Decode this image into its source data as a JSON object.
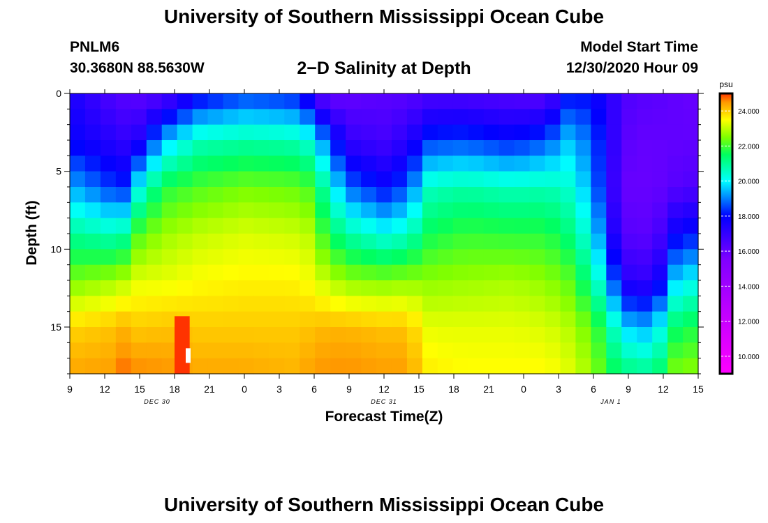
{
  "page": {
    "title_top": "University of Southern Mississippi Ocean Cube",
    "title_bottom": "University of Southern Mississippi Ocean Cube",
    "station": "PNLM6",
    "coords": "30.3680N 88.5630W",
    "subtitle": "2−D Salinity at Depth",
    "model_start_label": "Model Start Time",
    "model_start_value": "12/30/2020 Hour 09"
  },
  "chart_data": {
    "type": "heatmap",
    "title": "2-D Salinity at Depth",
    "xlabel": "Forecast Time(Z)",
    "ylabel": "Depth (ft)",
    "x_range": [
      0,
      54
    ],
    "y_range": [
      0,
      18
    ],
    "x_ticks": [
      {
        "h": 0,
        "label": "9"
      },
      {
        "h": 3,
        "label": "12"
      },
      {
        "h": 6,
        "label": "15"
      },
      {
        "h": 9,
        "label": "18"
      },
      {
        "h": 12,
        "label": "21"
      },
      {
        "h": 15,
        "label": "0"
      },
      {
        "h": 18,
        "label": "3"
      },
      {
        "h": 21,
        "label": "6"
      },
      {
        "h": 24,
        "label": "9"
      },
      {
        "h": 27,
        "label": "12"
      },
      {
        "h": 30,
        "label": "15"
      },
      {
        "h": 33,
        "label": "18"
      },
      {
        "h": 36,
        "label": "21"
      },
      {
        "h": 39,
        "label": "0"
      },
      {
        "h": 42,
        "label": "3"
      },
      {
        "h": 45,
        "label": "6"
      },
      {
        "h": 48,
        "label": "9"
      },
      {
        "h": 51,
        "label": "12"
      },
      {
        "h": 54,
        "label": "15"
      }
    ],
    "y_ticks": [
      {
        "d": 0,
        "label": "0"
      },
      {
        "d": 5,
        "label": "5"
      },
      {
        "d": 10,
        "label": "10"
      },
      {
        "d": 15,
        "label": "15"
      }
    ],
    "date_labels": [
      {
        "h": 7.5,
        "label": "DEC 30"
      },
      {
        "h": 27,
        "label": "DEC 31"
      },
      {
        "h": 46.5,
        "label": "JAN 1"
      }
    ],
    "colorbar": {
      "unit": "psu",
      "min": 9,
      "max": 25,
      "ticks": [
        {
          "v": 10,
          "label": "10.000"
        },
        {
          "v": 12,
          "label": "12.000"
        },
        {
          "v": 14,
          "label": "14.000"
        },
        {
          "v": 16,
          "label": "16.000"
        },
        {
          "v": 18,
          "label": "18.000"
        },
        {
          "v": 20,
          "label": "20.000"
        },
        {
          "v": 22,
          "label": "22.000"
        },
        {
          "v": 24,
          "label": "24.000"
        }
      ],
      "stops": [
        {
          "v": 9.0,
          "c": "#ff00ff"
        },
        {
          "v": 12.5,
          "c": "#c000ff"
        },
        {
          "v": 15.5,
          "c": "#8000ff"
        },
        {
          "v": 18.0,
          "c": "#0000ff"
        },
        {
          "v": 20.0,
          "c": "#00ffff"
        },
        {
          "v": 21.5,
          "c": "#00ff60"
        },
        {
          "v": 22.5,
          "c": "#80ff00"
        },
        {
          "v": 23.5,
          "c": "#ffff00"
        },
        {
          "v": 24.5,
          "c": "#ff9900"
        },
        {
          "v": 25.0,
          "c": "#ff3300"
        }
      ]
    },
    "grid": {
      "rows": 18,
      "cols": 41,
      "row_depth_ft": 1,
      "col_hours": 1.3171
    },
    "profiles": {
      "note": "Salinity (psu) vs depth per forecast-hour key point; values at depths 0.5, 3, 6, 9, 12, 15, 17.5 ft, linearly interpolated between.",
      "depths": [
        0.5,
        3,
        6,
        9,
        12,
        15,
        17.5
      ],
      "keyframes": [
        {
          "h": 0,
          "s": [
            17.6,
            17.9,
            19.4,
            21.0,
            22.4,
            23.9,
            24.3
          ]
        },
        {
          "h": 4,
          "s": [
            16.5,
            17.2,
            18.3,
            20.6,
            22.8,
            24.1,
            24.4
          ]
        },
        {
          "h": 5,
          "s": [
            16.4,
            17.0,
            18.3,
            21.0,
            23.0,
            24.3,
            24.8
          ]
        },
        {
          "h": 6,
          "s": [
            16.4,
            17.4,
            20.2,
            22.2,
            23.3,
            24.0,
            24.5
          ]
        },
        {
          "h": 8,
          "s": [
            16.8,
            19.4,
            21.7,
            22.7,
            23.3,
            24.1,
            24.5
          ]
        },
        {
          "h": 11,
          "s": [
            18.2,
            20.6,
            22.1,
            23.0,
            23.5,
            24.0,
            24.3
          ]
        },
        {
          "h": 15,
          "s": [
            18.8,
            20.8,
            22.4,
            23.2,
            23.6,
            24.0,
            24.3
          ]
        },
        {
          "h": 19,
          "s": [
            18.6,
            20.7,
            22.3,
            23.1,
            23.6,
            24.0,
            24.2
          ]
        },
        {
          "h": 21,
          "s": [
            17.6,
            20.2,
            22.0,
            22.9,
            23.4,
            24.1,
            24.4
          ]
        },
        {
          "h": 22,
          "s": [
            16.3,
            18.8,
            20.6,
            21.7,
            23.0,
            24.2,
            24.5
          ]
        },
        {
          "h": 24,
          "s": [
            16.2,
            17.0,
            18.8,
            20.8,
            22.6,
            24.2,
            24.5
          ]
        },
        {
          "h": 27,
          "s": [
            16.3,
            16.7,
            18.0,
            20.2,
            22.5,
            24.1,
            24.4
          ]
        },
        {
          "h": 29,
          "s": [
            16.4,
            17.2,
            18.6,
            20.5,
            22.6,
            24.1,
            24.4
          ]
        },
        {
          "h": 31,
          "s": [
            16.8,
            18.4,
            20.6,
            21.6,
            22.6,
            23.3,
            23.6
          ]
        },
        {
          "h": 34,
          "s": [
            16.8,
            18.5,
            20.8,
            21.9,
            22.7,
            23.3,
            23.5
          ]
        },
        {
          "h": 38,
          "s": [
            16.6,
            18.1,
            20.6,
            21.8,
            22.8,
            23.3,
            23.5
          ]
        },
        {
          "h": 41,
          "s": [
            16.6,
            18.6,
            20.7,
            21.8,
            22.6,
            23.2,
            23.5
          ]
        },
        {
          "h": 43,
          "s": [
            18.4,
            19.6,
            20.4,
            21.2,
            22.2,
            22.9,
            23.2
          ]
        },
        {
          "h": 45,
          "s": [
            18.0,
            18.6,
            19.1,
            19.9,
            20.9,
            22.2,
            22.6
          ]
        },
        {
          "h": 46,
          "s": [
            17.5,
            17.8,
            17.8,
            18.5,
            19.7,
            21.3,
            21.8
          ]
        },
        {
          "h": 47,
          "s": [
            16.9,
            16.8,
            16.6,
            17.0,
            18.2,
            20.3,
            21.3
          ]
        },
        {
          "h": 48,
          "s": [
            16.4,
            16.2,
            16.0,
            16.3,
            17.2,
            19.6,
            21.0
          ]
        },
        {
          "h": 50,
          "s": [
            16.2,
            16.0,
            16.0,
            16.2,
            17.0,
            19.3,
            20.8
          ]
        },
        {
          "h": 51,
          "s": [
            16.2,
            16.1,
            16.1,
            16.8,
            18.0,
            20.4,
            21.4
          ]
        },
        {
          "h": 52,
          "s": [
            16.1,
            16.1,
            16.3,
            17.8,
            19.6,
            21.4,
            22.3
          ]
        },
        {
          "h": 54,
          "s": [
            16.0,
            16.1,
            16.5,
            18.2,
            20.2,
            21.8,
            22.5
          ]
        }
      ],
      "hotspot": {
        "h_from": 9.0,
        "h_to": 10.3,
        "d_from": 14.3,
        "d_to": 18,
        "value": 25
      }
    }
  }
}
